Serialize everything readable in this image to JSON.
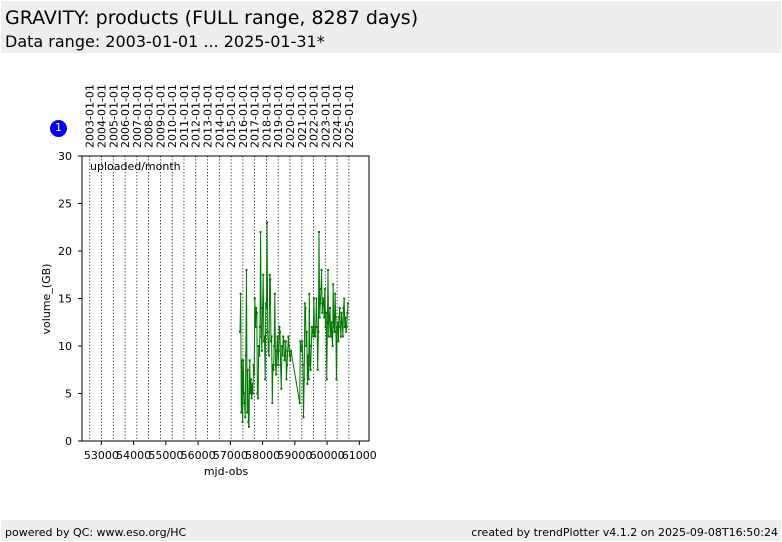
{
  "header": {
    "title": "GRAVITY: products (FULL range, 8287 days)",
    "subtitle": "Data range: 2003-01-01 ... 2025-01-31*"
  },
  "badge": "1",
  "footer": {
    "left": "powered by QC: www.eso.org/HC",
    "right": "created by trendPlotter v4.1.2 on 2025-09-08T16:50:24"
  },
  "chart_data": {
    "type": "line",
    "title": "",
    "annotation": "uploaded/month",
    "xlabel": "mjd-obs",
    "ylabel": "volume_(GB)",
    "xlim": [
      52400,
      61300
    ],
    "ylim": [
      0,
      30
    ],
    "x_ticks": [
      53000,
      54000,
      55000,
      56000,
      57000,
      58000,
      59000,
      60000,
      61000
    ],
    "y_ticks": [
      0,
      5,
      10,
      15,
      20,
      25,
      30
    ],
    "year_labels": [
      "2003-01-01",
      "2004-01-01",
      "2005-01-01",
      "2006-01-01",
      "2007-01-01",
      "2008-01-01",
      "2009-01-01",
      "2010-01-01",
      "2011-01-01",
      "2012-01-01",
      "2013-01-01",
      "2014-01-01",
      "2015-01-01",
      "2016-01-01",
      "2017-01-01",
      "2018-01-01",
      "2019-01-01",
      "2020-01-01",
      "2021-01-01",
      "2022-01-01",
      "2023-01-01",
      "2024-01-01",
      "2025-01-01"
    ],
    "year_mjd": [
      52640,
      53005,
      53371,
      53736,
      54101,
      54466,
      54832,
      55197,
      55562,
      55927,
      56293,
      56658,
      57023,
      57388,
      57754,
      58119,
      58484,
      58849,
      59215,
      59580,
      59945,
      60310,
      60676
    ],
    "vertical_grid": "dotted at year boundaries",
    "series_color": "#007700",
    "series": [
      {
        "x": [
          57300,
          57320,
          57340,
          57360,
          57380,
          57400,
          57420,
          57440,
          57460,
          57480,
          57500,
          57520,
          57540,
          57560,
          57580,
          57600,
          57620,
          57640,
          57660,
          57680,
          57700,
          57720,
          57740,
          57760,
          57780,
          57800,
          57820,
          57840,
          57860,
          57880,
          57900,
          57920,
          57940,
          57960,
          57980,
          58000,
          58020,
          58040,
          58060,
          58080,
          58100,
          58120,
          58140,
          58160,
          58180,
          58200,
          58220,
          58240,
          58260,
          58280,
          58300,
          58320,
          58340,
          58360,
          58380,
          58400,
          58420,
          58440,
          58460,
          58480,
          58500,
          58520,
          58540,
          58560,
          58580,
          58600,
          58620,
          58640,
          58660,
          58680,
          58700,
          58720,
          58740,
          58760,
          58780,
          58800,
          58820,
          58840,
          58860,
          58880,
          59150,
          59170,
          59190,
          59210,
          59230,
          59250,
          59270,
          59290,
          59310,
          59330,
          59350,
          59370,
          59390,
          59410,
          59430,
          59450,
          59470,
          59490,
          59510,
          59530,
          59550,
          59570,
          59590,
          59610,
          59630,
          59650,
          59670,
          59690,
          59710,
          59730,
          59750,
          59770,
          59790,
          59810,
          59830,
          59850,
          59870,
          59890,
          59910,
          59930,
          59950,
          59970,
          59990,
          60010,
          60030,
          60050,
          60070,
          60090,
          60110,
          60130,
          60150,
          60170,
          60190,
          60210,
          60230,
          60250,
          60270,
          60290,
          60310,
          60330,
          60350,
          60370,
          60390,
          60410,
          60430,
          60450,
          60470,
          60490,
          60510,
          60530,
          60550,
          60570,
          60590,
          60610,
          60630,
          60650
        ],
        "y": [
          11.5,
          15.5,
          3.0,
          8.5,
          2.0,
          8.5,
          5.0,
          4.0,
          2.5,
          9.0,
          18.0,
          3.0,
          7.5,
          2.0,
          1.5,
          8.5,
          5.0,
          6.5,
          4.5,
          6.0,
          5.0,
          8.0,
          7.0,
          15.0,
          12.0,
          14.0,
          13.5,
          5.0,
          4.5,
          10.0,
          9.0,
          12.0,
          22.0,
          11.0,
          9.5,
          14.0,
          17.5,
          10.5,
          11.0,
          6.5,
          14.5,
          14.0,
          23.0,
          11.5,
          9.5,
          9.0,
          17.5,
          17.0,
          10.5,
          11.0,
          4.0,
          8.0,
          7.5,
          10.0,
          15.5,
          8.0,
          7.0,
          9.5,
          11.0,
          8.0,
          9.5,
          12.0,
          11.5,
          8.0,
          5.5,
          10.0,
          9.0,
          11.0,
          10.5,
          8.5,
          9.0,
          10.5,
          6.5,
          8.0,
          9.5,
          11.0,
          10.0,
          9.0,
          8.5,
          9.5,
          4.0,
          10.5,
          9.5,
          10.0,
          10.5,
          8.0,
          2.5,
          6.5,
          14.5,
          14.0,
          10.0,
          11.5,
          6.0,
          9.0,
          6.5,
          15.5,
          8.0,
          7.5,
          10.0,
          12.0,
          11.5,
          11.0,
          15.0,
          11.0,
          11.0,
          12.0,
          15.0,
          12.0,
          7.5,
          11.5,
          22.0,
          13.0,
          14.5,
          16.0,
          18.0,
          13.5,
          14.5,
          15.0,
          13.0,
          16.0,
          12.0,
          13.5,
          6.5,
          12.5,
          18.0,
          11.0,
          13.0,
          14.0,
          11.0,
          12.5,
          11.0,
          10.0,
          16.5,
          12.0,
          11.5,
          15.5,
          13.0,
          6.5,
          12.0,
          12.5,
          10.5,
          13.0,
          14.0,
          12.0,
          11.0,
          13.5,
          12.5,
          11.0,
          14.0,
          15.0,
          12.0,
          13.0,
          11.5,
          12.0,
          13.5,
          14.5
        ]
      }
    ]
  }
}
